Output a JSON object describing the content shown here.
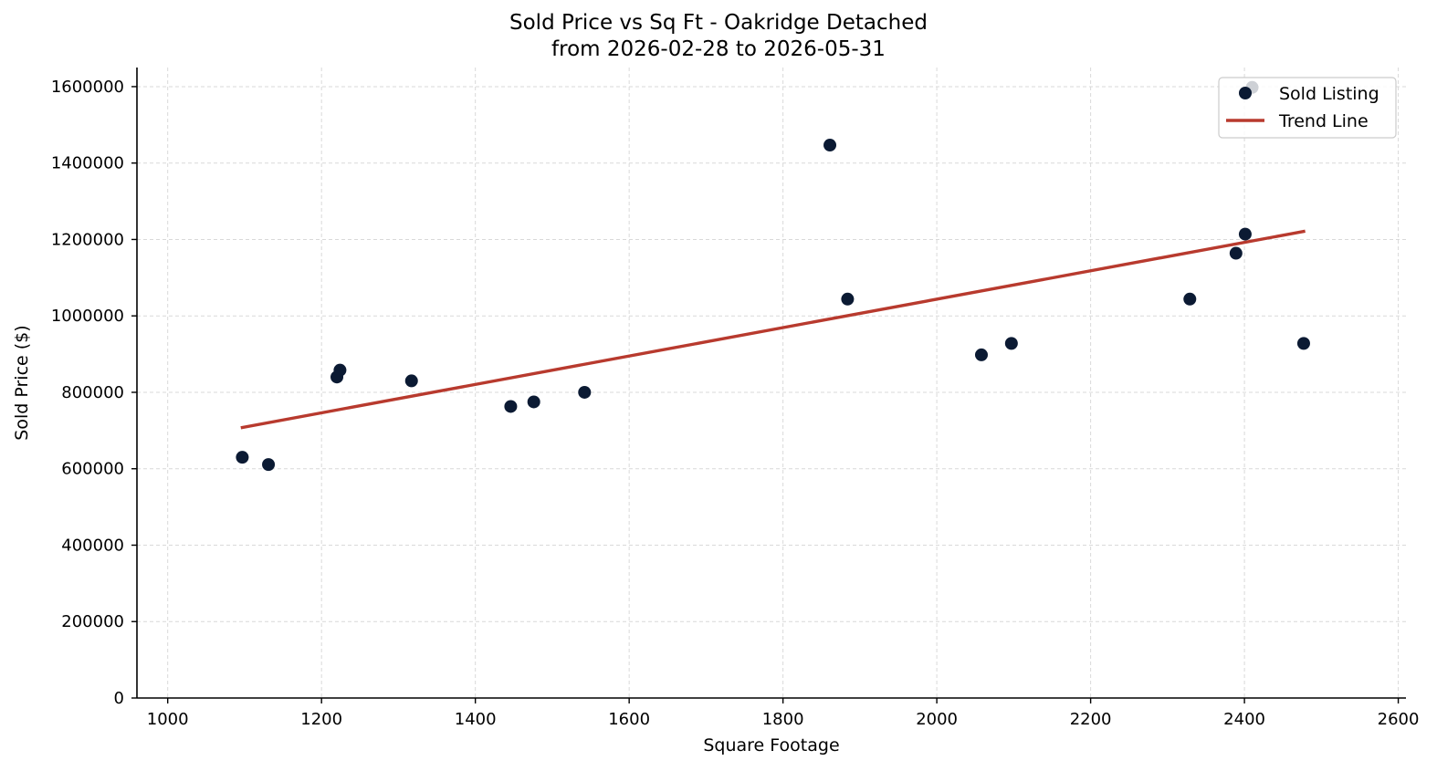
{
  "chart_data": {
    "type": "scatter",
    "title": "Sold Price vs Sq Ft - Oakridge Detached",
    "subtitle": "from 2026-02-28 to 2026-05-31",
    "xlabel": "Square Footage",
    "ylabel": "Sold Price ($)",
    "xlim": [
      960,
      2610
    ],
    "ylim": [
      0,
      1650000
    ],
    "xticks": [
      1000,
      1200,
      1400,
      1600,
      1800,
      2000,
      2200,
      2400,
      2600
    ],
    "yticks": [
      0,
      200000,
      400000,
      600000,
      800000,
      1000000,
      1200000,
      1400000,
      1600000
    ],
    "grid": true,
    "legend_position": "top-right",
    "series": [
      {
        "name": "Sold Listing",
        "kind": "scatter",
        "color": "#0b1a33",
        "points": [
          {
            "x": 1097,
            "y": 630000
          },
          {
            "x": 1131,
            "y": 611000
          },
          {
            "x": 1220,
            "y": 840000
          },
          {
            "x": 1224,
            "y": 858000
          },
          {
            "x": 1317,
            "y": 830000
          },
          {
            "x": 1446,
            "y": 763000
          },
          {
            "x": 1476,
            "y": 775000
          },
          {
            "x": 1542,
            "y": 800000
          },
          {
            "x": 1861,
            "y": 1447000
          },
          {
            "x": 1884,
            "y": 1044000
          },
          {
            "x": 2058,
            "y": 898000
          },
          {
            "x": 2097,
            "y": 928000
          },
          {
            "x": 2329,
            "y": 1044000
          },
          {
            "x": 2389,
            "y": 1164000
          },
          {
            "x": 2401,
            "y": 1214000
          },
          {
            "x": 2410,
            "y": 1598000
          },
          {
            "x": 2477,
            "y": 928000
          }
        ]
      },
      {
        "name": "Trend Line",
        "kind": "line",
        "color": "#b83a2e",
        "points": [
          {
            "x": 1097,
            "y": 708000
          },
          {
            "x": 2477,
            "y": 1221000
          }
        ]
      }
    ]
  }
}
